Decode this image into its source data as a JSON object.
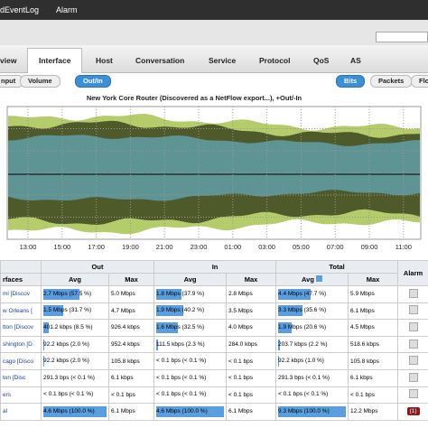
{
  "topbar": {
    "items": [
      "dEventLog",
      "Alarm"
    ]
  },
  "tabs": [
    "view",
    "Interface",
    "Host",
    "Conversation",
    "Service",
    "Protocol",
    "QoS",
    "AS"
  ],
  "active_tab": "Interface",
  "left_buttons": [
    "nput",
    "Volume",
    "Out/In"
  ],
  "right_buttons": [
    "Bits",
    "Packets",
    "Flow"
  ],
  "chart": {
    "title": "New York Core Router (Discovered as a NetFlow export...), +Out/-In",
    "xticks": [
      "13:00",
      "15:00",
      "17:00",
      "19:00",
      "21:00",
      "23:00",
      "01:00",
      "03:00",
      "05:00",
      "07:00",
      "09:00",
      "11:00"
    ]
  },
  "table": {
    "groups": [
      "Out",
      "In",
      "Total",
      "Alarm"
    ],
    "columns": [
      "rfaces",
      "Avg",
      "Max",
      "Avg",
      "Max",
      "Avg",
      "Max"
    ],
    "rows": [
      [
        {
          "text": "mi [Discov"
        },
        {
          "text": "2.7 Mbps (57.5 %)",
          "pct": 57.5
        },
        {
          "text": "5.0 Mbps"
        },
        {
          "text": "1.8 Mbps (37.9 %)",
          "pct": 37.9
        },
        {
          "text": "2.8 Mbps"
        },
        {
          "text": "4.4 Mbps (47.7 %)",
          "pct": 47.7
        },
        {
          "text": "5.9 Mbps"
        }
      ],
      [
        {
          "text": "w Orleans ["
        },
        {
          "text": "1.5 Mbps (31.7 %)",
          "pct": 31.7
        },
        {
          "text": "4.7 Mbps"
        },
        {
          "text": "1.9 Mbps (40.2 %)",
          "pct": 40.2
        },
        {
          "text": "3.5 Mbps"
        },
        {
          "text": "3.3 Mbps (35.6 %)",
          "pct": 35.6
        },
        {
          "text": "6.1 Mbps"
        }
      ],
      [
        {
          "text": "tton [Discov"
        },
        {
          "text": "401.2 kbps (8.5 %)",
          "pct": 8.5
        },
        {
          "text": "926.4 kbps"
        },
        {
          "text": "1.6 Mbps (32.5 %)",
          "pct": 32.5
        },
        {
          "text": "4.0 Mbps"
        },
        {
          "text": "1.9 Mbps (20.6 %)",
          "pct": 20.6
        },
        {
          "text": "4.5 Mbps"
        }
      ],
      [
        {
          "text": "shington [D"
        },
        {
          "text": "92.2 kbps (2.0 %)",
          "pct": 2.0
        },
        {
          "text": "952.4 kbps"
        },
        {
          "text": "111.5 kbps (2.3 %)",
          "pct": 2.3
        },
        {
          "text": "284.0 kbps"
        },
        {
          "text": "203.7 kbps (2.2 %)",
          "pct": 2.2
        },
        {
          "text": "518.6 kbps"
        }
      ],
      [
        {
          "text": "cago [Disco"
        },
        {
          "text": "92.2 kbps (2.0 %)",
          "pct": 2.0
        },
        {
          "text": "105.8 kbps"
        },
        {
          "text": "< 0.1 bps (< 0.1 %)",
          "pct": 0
        },
        {
          "text": "< 0.1 bps"
        },
        {
          "text": "92.2 kbps (1.0 %)",
          "pct": 1.0
        },
        {
          "text": "105.8 kbps"
        }
      ],
      [
        {
          "text": "ton [Disc"
        },
        {
          "text": "291.3 bps (< 0.1 %)",
          "pct": 0
        },
        {
          "text": "6.1 kbps"
        },
        {
          "text": "< 0.1 bps (< 0.1 %)",
          "pct": 0
        },
        {
          "text": "< 0.1 bps"
        },
        {
          "text": "291.3 bps (< 0.1 %)",
          "pct": 0
        },
        {
          "text": "6.1 kbps"
        }
      ],
      [
        {
          "text": "ers"
        },
        {
          "text": "< 0.1 bps (< 0.1 %)",
          "pct": 0
        },
        {
          "text": "< 0.1 bps"
        },
        {
          "text": "< 0.1 bps (< 0.1 %)",
          "pct": 0
        },
        {
          "text": "< 0.1 bps"
        },
        {
          "text": "< 0.1 bps (< 0.1 %)",
          "pct": 0
        },
        {
          "text": "< 0.1 bps"
        }
      ],
      [
        {
          "text": "al"
        },
        {
          "text": "4.6 Mbps (100.0 %)",
          "pct": 100.0
        },
        {
          "text": "6.1 Mbps"
        },
        {
          "text": "4.6 Mbps (100.0 %)",
          "pct": 100.0
        },
        {
          "text": "6.1 Mbps"
        },
        {
          "text": "9.3 Mbps (100.0 %)",
          "pct": 100.0
        },
        {
          "text": "12.2 Mbps"
        }
      ]
    ],
    "total_alarm": "(1)"
  }
}
